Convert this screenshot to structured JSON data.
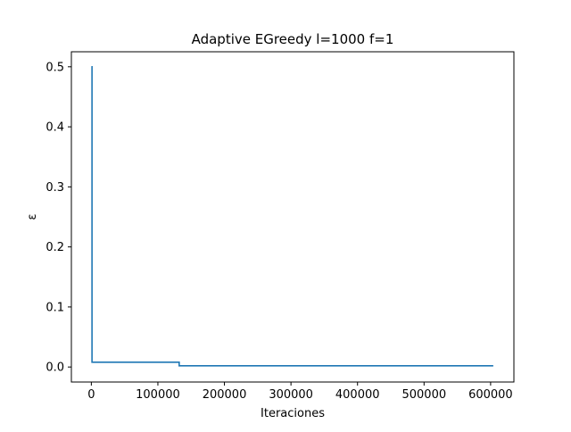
{
  "chart_data": {
    "type": "line",
    "title": "Adaptive EGreedy l=1000 f=1",
    "xlabel": "Iteraciones",
    "ylabel": "ε",
    "xlim": [
      -30000,
      635000
    ],
    "ylim": [
      -0.025,
      0.525
    ],
    "x_ticks": [
      0,
      100000,
      200000,
      300000,
      400000,
      500000,
      600000
    ],
    "y_ticks": [
      0.0,
      0.1,
      0.2,
      0.3,
      0.4,
      0.5
    ],
    "grid": false,
    "legend": "none",
    "series": [
      {
        "color": "#1f77b4",
        "points": [
          [
            0,
            0.5
          ],
          [
            1000,
            0.5
          ],
          [
            1000,
            0.008
          ],
          [
            132000,
            0.008
          ],
          [
            132000,
            0.002
          ],
          [
            604000,
            0.002
          ]
        ]
      }
    ]
  }
}
